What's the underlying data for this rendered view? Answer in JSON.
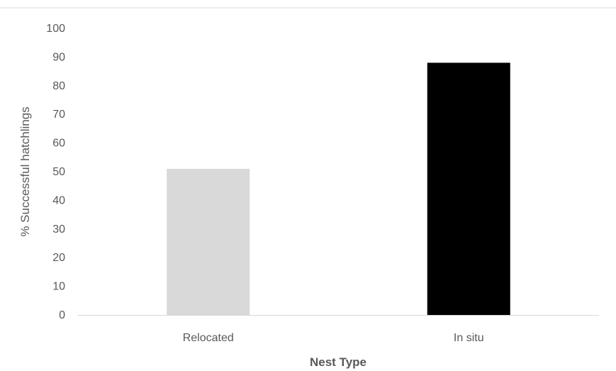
{
  "chart_data": {
    "type": "bar",
    "categories": [
      "Relocated",
      "In situ"
    ],
    "values": [
      51,
      88
    ],
    "bar_colors": [
      "#d9d9d9",
      "#000000"
    ],
    "xlabel": "Nest Type",
    "ylabel": "% Successful hatchlings",
    "ylim": [
      0,
      100
    ],
    "yticks": [
      "0",
      "10",
      "20",
      "30",
      "40",
      "50",
      "60",
      "70",
      "80",
      "90",
      "100"
    ],
    "grid": false,
    "legend": "none",
    "axis_color": "#d9d9d9",
    "text_color": "#595959"
  }
}
